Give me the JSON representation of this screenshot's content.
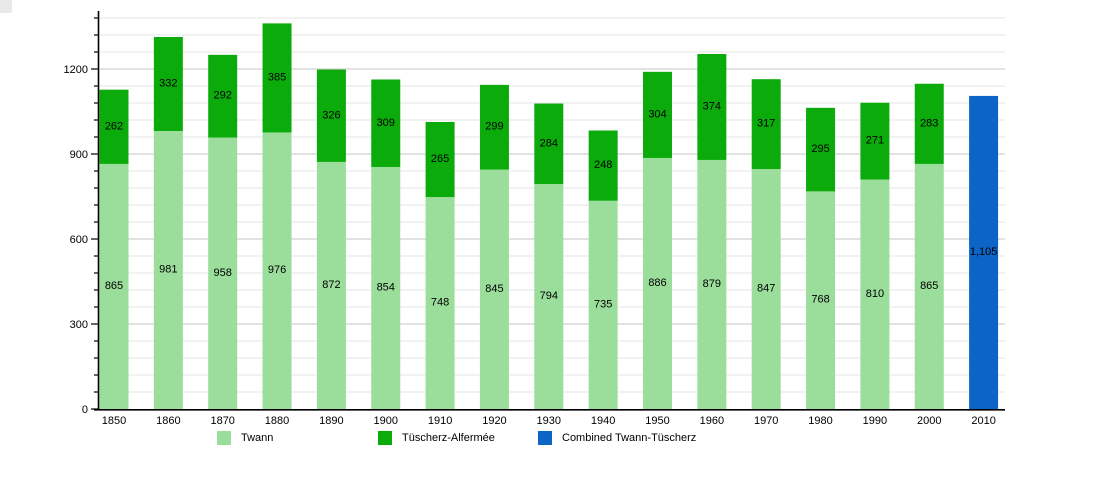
{
  "chart_data": {
    "type": "bar",
    "stacked": true,
    "categories": [
      "1850",
      "1860",
      "1870",
      "1880",
      "1890",
      "1900",
      "1910",
      "1920",
      "1930",
      "1940",
      "1950",
      "1960",
      "1970",
      "1980",
      "1990",
      "2000",
      "2010"
    ],
    "series": [
      {
        "name": "Twann",
        "color": "#9BDE9B",
        "values": [
          865,
          981,
          958,
          976,
          872,
          854,
          748,
          845,
          794,
          735,
          886,
          879,
          847,
          768,
          810,
          865,
          null
        ]
      },
      {
        "name": "Tüscherz-Alfermée",
        "color": "#0CAB0C",
        "values": [
          262,
          332,
          292,
          385,
          326,
          309,
          265,
          299,
          284,
          248,
          304,
          374,
          317,
          295,
          271,
          283,
          null
        ]
      },
      {
        "name": "Combined Twann-Tüscherz",
        "color": "#0B64C6",
        "values": [
          null,
          null,
          null,
          null,
          null,
          null,
          null,
          null,
          null,
          null,
          null,
          null,
          null,
          null,
          null,
          null,
          1105
        ]
      }
    ],
    "bar_value_labels": true,
    "yticks": [
      0,
      300,
      600,
      900,
      1200
    ],
    "minor_tick_step": 60,
    "ylim": [
      0,
      1408
    ],
    "grid": true,
    "legend_position": "bottom",
    "colors": {
      "text": "#000000",
      "axis": "#000000",
      "grid_minor": "#e6e6e6",
      "grid_major": "#c6c6c6"
    }
  },
  "legend": {
    "items": [
      {
        "label": "Twann"
      },
      {
        "label": "Tüscherz-Alfermée"
      },
      {
        "label": "Combined Twann-Tüscherz"
      }
    ]
  }
}
